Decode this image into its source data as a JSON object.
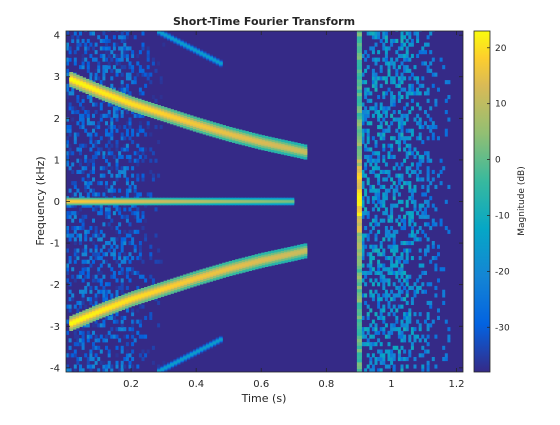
{
  "chart_data": {
    "type": "heatmap",
    "title": "Short-Time Fourier Transform",
    "xlabel": "Time (s)",
    "ylabel": "Frequency (kHz)",
    "xlim": [
      0,
      1.22
    ],
    "ylim": [
      -4.1,
      4.1
    ],
    "xticks": [
      {
        "value": 0.2,
        "label": "0.2"
      },
      {
        "value": 0.4,
        "label": "0.4"
      },
      {
        "value": 0.6,
        "label": "0.6"
      },
      {
        "value": 0.8,
        "label": "0.8"
      },
      {
        "value": 1.0,
        "label": "1"
      },
      {
        "value": 1.2,
        "label": "1.2"
      }
    ],
    "yticks": [
      {
        "value": -4,
        "label": "-4"
      },
      {
        "value": -3,
        "label": "-3"
      },
      {
        "value": -2,
        "label": "-2"
      },
      {
        "value": -1,
        "label": "-1"
      },
      {
        "value": 0,
        "label": "0"
      },
      {
        "value": 1,
        "label": "1"
      },
      {
        "value": 2,
        "label": "2"
      },
      {
        "value": 3,
        "label": "3"
      },
      {
        "value": 4,
        "label": "4"
      }
    ],
    "colorbar": {
      "label": "Magnitude (dB)",
      "range": [
        -38,
        23
      ],
      "colormap": "parula",
      "ticks": [
        {
          "value": 20,
          "label": "20"
        },
        {
          "value": 10,
          "label": "10"
        },
        {
          "value": 0,
          "label": "0"
        },
        {
          "value": -10,
          "label": "-10"
        },
        {
          "value": -20,
          "label": "-20"
        },
        {
          "value": -30,
          "label": "-30"
        }
      ]
    },
    "features": [
      {
        "name": "upper-chirp",
        "t": [
          0.01,
          0.1,
          0.2,
          0.3,
          0.4,
          0.5,
          0.6,
          0.7,
          0.74
        ],
        "f_khz": [
          2.95,
          2.65,
          2.35,
          2.1,
          1.85,
          1.62,
          1.42,
          1.25,
          1.18
        ],
        "peak_db": 20
      },
      {
        "name": "lower-chirp",
        "t": [
          0.01,
          0.1,
          0.2,
          0.3,
          0.4,
          0.5,
          0.6,
          0.7,
          0.74
        ],
        "f_khz": [
          -2.95,
          -2.65,
          -2.35,
          -2.1,
          -1.85,
          -1.62,
          -1.42,
          -1.25,
          -1.18
        ],
        "peak_db": 20
      },
      {
        "name": "dc-line",
        "t": [
          0.0,
          0.7
        ],
        "f_khz": [
          0.0,
          0.0
        ],
        "peak_db": 15
      },
      {
        "name": "upper-alias",
        "t": [
          0.28,
          0.48
        ],
        "f_khz": [
          4.1,
          3.3
        ],
        "peak_db": -18
      },
      {
        "name": "lower-alias",
        "t": [
          0.28,
          0.48
        ],
        "f_khz": [
          -4.1,
          -3.3
        ],
        "peak_db": -18
      },
      {
        "name": "impulse",
        "t": [
          0.9,
          0.9
        ],
        "f_khz": [
          -4.1,
          4.1
        ],
        "peak_db": 22
      },
      {
        "name": "noise-region-early",
        "t": [
          0.0,
          0.3
        ],
        "f_khz": [
          -4.1,
          4.1
        ],
        "peak_db": -15
      },
      {
        "name": "noise-region-late",
        "t": [
          0.9,
          1.18
        ],
        "f_khz": [
          -4.1,
          4.1
        ],
        "peak_db": -5
      }
    ]
  }
}
